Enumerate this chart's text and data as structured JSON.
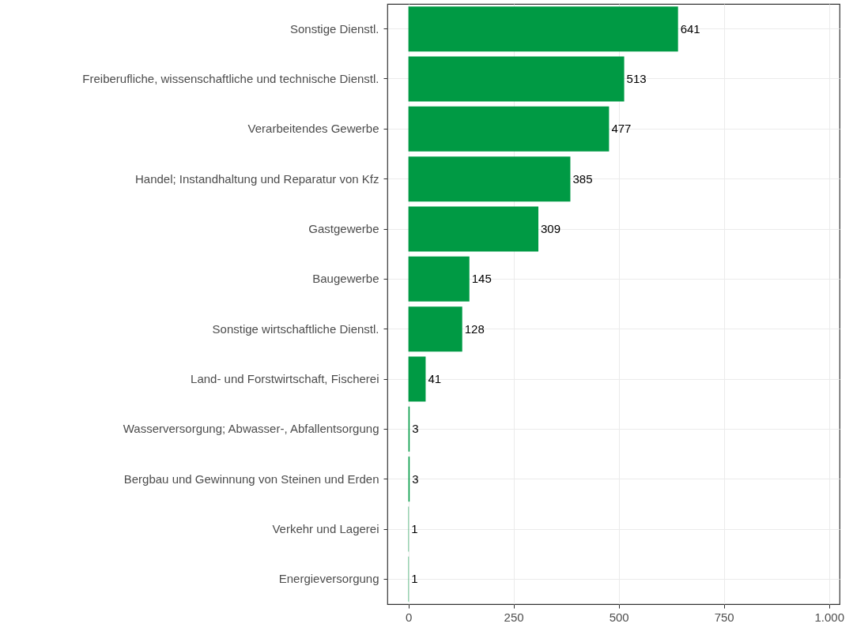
{
  "chart_data": {
    "type": "bar",
    "orientation": "horizontal",
    "categories": [
      "Sonstige Dienstl.",
      "Freiberufliche, wissenschaftliche und technische Dienstl.",
      "Verarbeitendes Gewerbe",
      "Handel; Instandhaltung und Reparatur von Kfz",
      "Gastgewerbe",
      "Baugewerbe",
      "Sonstige wirtschaftliche Dienstl.",
      "Land- und Forstwirtschaft, Fischerei",
      "Wasserversorgung; Abwasser-, Abfallentsorgung",
      "Bergbau und Gewinnung von Steinen und Erden",
      "Verkehr und Lagerei",
      "Energieversorgung"
    ],
    "values": [
      641,
      513,
      477,
      385,
      309,
      145,
      128,
      41,
      3,
      3,
      1,
      1
    ],
    "color": "#009a44",
    "data_labels": true,
    "grid": true,
    "xlim": [
      -50,
      1025
    ],
    "xticks": [
      0,
      250,
      500,
      750,
      {
        "value": 1000,
        "label": "1.000"
      }
    ]
  }
}
